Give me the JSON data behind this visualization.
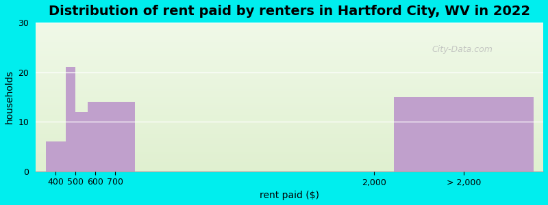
{
  "title": "Distribution of rent paid by renters in Hartford City, WV in 2022",
  "xlabel": "rent paid ($)",
  "ylabel": "households",
  "bar_color": "#c0a0cc",
  "bar_edges": [
    350,
    450,
    500,
    600,
    700,
    1900,
    2100,
    2800
  ],
  "bar_values": [
    6,
    0,
    21,
    12,
    14,
    0,
    15,
    0
  ],
  "xtick_positions": [
    400,
    500,
    600,
    700,
    2000,
    2450
  ],
  "xtick_labels": [
    "400",
    "500",
    "600",
    "700",
    "2,000",
    "> 2,000"
  ],
  "ylim": [
    0,
    30
  ],
  "yticks": [
    0,
    10,
    20,
    30
  ],
  "xlim": [
    300,
    2850
  ],
  "background_outer": "#00EEEE",
  "title_fontsize": 14,
  "axis_label_fontsize": 10,
  "watermark": "City-Data.com"
}
